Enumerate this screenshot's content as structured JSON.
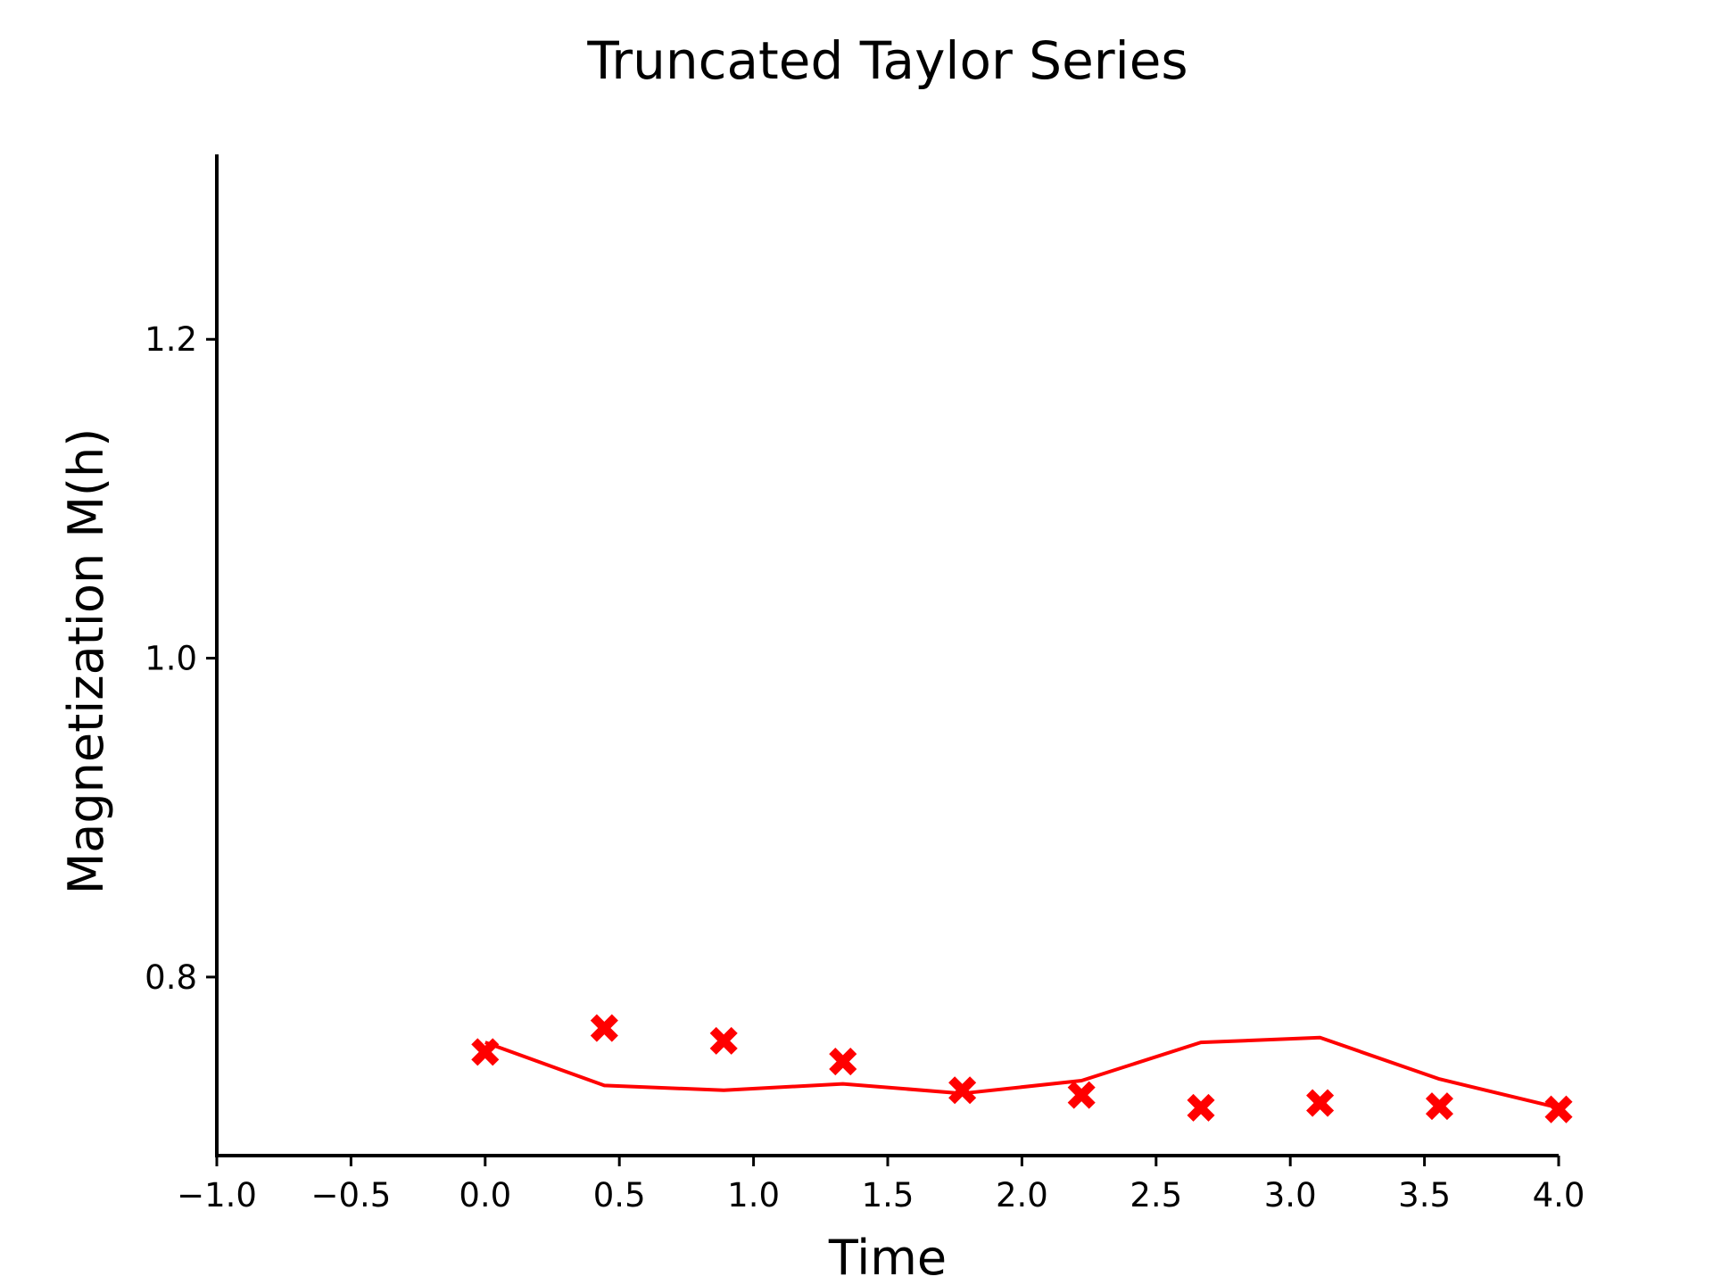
{
  "chart_data": {
    "type": "line",
    "title": "Truncated Taylor Series",
    "xlabel": "Time",
    "ylabel": "Magnetization M(h)",
    "xlim": [
      -1.0,
      4.0
    ],
    "ylim": [
      0.688,
      1.316
    ],
    "xticks": [
      -1.0,
      -0.5,
      0.0,
      0.5,
      1.0,
      1.5,
      2.0,
      2.5,
      3.0,
      3.5,
      4.0
    ],
    "xtick_labels": [
      "−1.0",
      "−0.5",
      "0.0",
      "0.5",
      "1.0",
      "1.5",
      "2.0",
      "2.5",
      "3.0",
      "3.5",
      "4.0"
    ],
    "yticks": [
      0.8,
      1.0,
      1.2
    ],
    "ytick_labels": [
      "0.8",
      "1.0",
      "1.2"
    ],
    "grid": false,
    "color": "#ff0000",
    "series": [
      {
        "kind": "line",
        "x": [
          0.0,
          0.444,
          0.889,
          1.333,
          1.778,
          2.222,
          2.667,
          3.111,
          3.556,
          4.0
        ],
        "y": [
          0.759,
          0.732,
          0.729,
          0.733,
          0.727,
          0.735,
          0.759,
          0.762,
          0.736,
          0.718
        ]
      },
      {
        "kind": "scatter",
        "marker": "X",
        "x": [
          0.0,
          0.444,
          0.889,
          1.333,
          1.778,
          2.222,
          2.667,
          3.111,
          3.556,
          4.0
        ],
        "y": [
          0.753,
          0.768,
          0.76,
          0.747,
          0.729,
          0.726,
          0.718,
          0.721,
          0.719,
          0.717
        ]
      }
    ]
  }
}
